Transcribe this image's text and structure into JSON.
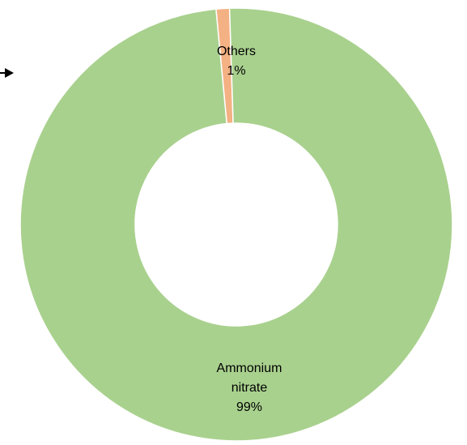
{
  "chart_data": {
    "type": "donut",
    "slices": [
      {
        "label_lines": [
          "Others"
        ],
        "percent_label": "1%",
        "value": 1,
        "color": "#f4b183"
      },
      {
        "label_lines": [
          "Ammonium",
          "nitrate"
        ],
        "percent_label": "99%",
        "value": 99,
        "color": "#a9d18e"
      }
    ],
    "slice_border_color": "#ffffff",
    "pointer_arrow_color": "#000000"
  }
}
